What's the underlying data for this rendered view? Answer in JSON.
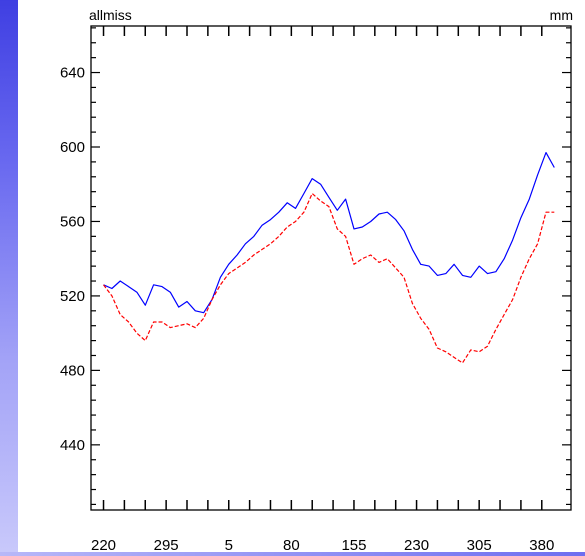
{
  "chart_data": {
    "type": "line",
    "title_left": "allmiss",
    "title_right": "mm",
    "xlabel": "",
    "ylabel": "",
    "ylim": [
      405,
      665
    ],
    "y_ticks": [
      440,
      480,
      520,
      560,
      600,
      640
    ],
    "x_range": [
      0,
      11.5
    ],
    "x_ticks": [
      {
        "x": 0.3,
        "label": "220"
      },
      {
        "x": 1.8,
        "label": "295"
      },
      {
        "x": 3.3,
        "label": "5"
      },
      {
        "x": 4.8,
        "label": "80"
      },
      {
        "x": 6.3,
        "label": "155"
      },
      {
        "x": 7.8,
        "label": "230"
      },
      {
        "x": 9.3,
        "label": "305"
      },
      {
        "x": 10.8,
        "label": "380"
      }
    ],
    "x_minor_ticks": [
      0.3,
      0.8,
      1.3,
      1.8,
      2.3,
      2.8,
      3.3,
      3.8,
      4.3,
      4.8,
      5.3,
      5.8,
      6.3,
      6.8,
      7.3,
      7.8,
      8.3,
      8.8,
      9.3,
      9.8,
      10.3,
      10.8
    ],
    "grid": false,
    "series": [
      {
        "color": "#0000ff",
        "dash": "solid",
        "x": [
          0.3,
          0.5,
          0.7,
          0.9,
          1.1,
          1.3,
          1.5,
          1.7,
          1.9,
          2.1,
          2.3,
          2.5,
          2.7,
          2.9,
          3.1,
          3.3,
          3.5,
          3.7,
          3.9,
          4.1,
          4.3,
          4.5,
          4.7,
          4.9,
          5.1,
          5.3,
          5.5,
          5.7,
          5.9,
          6.1,
          6.3,
          6.5,
          6.7,
          6.9,
          7.1,
          7.3,
          7.5,
          7.7,
          7.9,
          8.1,
          8.3,
          8.5,
          8.7,
          8.9,
          9.1,
          9.3,
          9.5,
          9.7,
          9.9,
          10.1,
          10.3,
          10.5,
          10.7,
          10.9,
          11.1
        ],
        "y": [
          526,
          524,
          528,
          525,
          522,
          515,
          526,
          525,
          522,
          514,
          517,
          512,
          511,
          518,
          530,
          537,
          542,
          548,
          552,
          558,
          561,
          565,
          570,
          567,
          575,
          583,
          580,
          573,
          566,
          572,
          556,
          557,
          560,
          564,
          565,
          561,
          555,
          545,
          537,
          536,
          531,
          532,
          537,
          531,
          530,
          536,
          532,
          533,
          540,
          550,
          562,
          572,
          585,
          597,
          589
        ]
      },
      {
        "color": "#ff0000",
        "dash": "dashed",
        "x": [
          0.3,
          0.5,
          0.7,
          0.9,
          1.1,
          1.3,
          1.5,
          1.7,
          1.9,
          2.1,
          2.3,
          2.5,
          2.7,
          2.9,
          3.1,
          3.3,
          3.5,
          3.7,
          3.9,
          4.1,
          4.3,
          4.5,
          4.7,
          4.9,
          5.1,
          5.3,
          5.5,
          5.7,
          5.9,
          6.1,
          6.3,
          6.5,
          6.7,
          6.9,
          7.1,
          7.3,
          7.5,
          7.7,
          7.9,
          8.1,
          8.3,
          8.5,
          8.7,
          8.9,
          9.1,
          9.3,
          9.5,
          9.7,
          9.9,
          10.1,
          10.3,
          10.5,
          10.7,
          10.9,
          11.1
        ],
        "y": [
          526,
          520,
          510,
          506,
          500,
          496,
          506,
          506,
          503,
          504,
          505,
          503,
          508,
          518,
          526,
          532,
          535,
          538,
          542,
          545,
          548,
          552,
          557,
          560,
          565,
          575,
          571,
          568,
          556,
          552,
          537,
          540,
          542,
          538,
          540,
          535,
          530,
          516,
          508,
          502,
          492,
          490,
          487,
          484,
          491,
          490,
          493,
          502,
          510,
          518,
          530,
          540,
          548,
          565,
          565
        ]
      }
    ]
  }
}
